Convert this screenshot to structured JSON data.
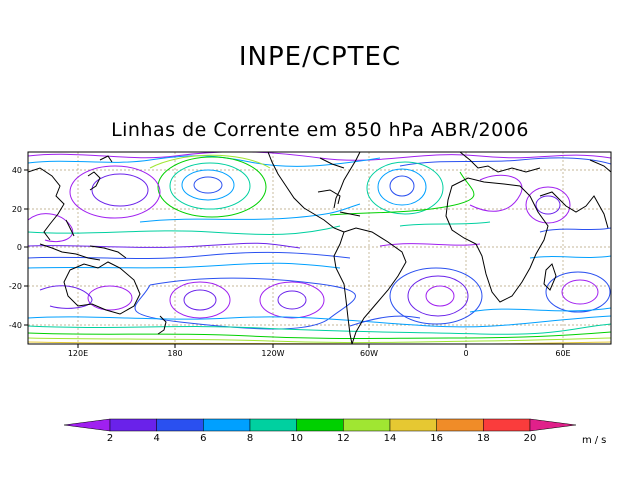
{
  "page": {
    "title": "INPE/CPTEC",
    "subtitle": "Linhas de Corrente em 850 hPa ABR/2006"
  },
  "map": {
    "lon_labels": [
      "120E",
      "180",
      "120W",
      "60W",
      "0",
      "60E"
    ],
    "lat_labels": [
      "40",
      "20",
      "0",
      "-20",
      "-40"
    ],
    "lat_range": [
      -50,
      50
    ],
    "lon_range": [
      100,
      455
    ]
  },
  "colorbar": {
    "unit": "m/s",
    "labels": [
      "2",
      "4",
      "6",
      "8",
      "10",
      "12",
      "14",
      "16",
      "18",
      "20"
    ],
    "colors": [
      "#a020f0",
      "#6a22ea",
      "#2a50f0",
      "#00a0ff",
      "#00d0a0",
      "#00d000",
      "#a0e632",
      "#e6c832",
      "#f08c28",
      "#fa3c3c",
      "#e0208a"
    ]
  },
  "colors": {
    "land": "#000000",
    "grid": "#b4a078",
    "frame": "#000000"
  }
}
